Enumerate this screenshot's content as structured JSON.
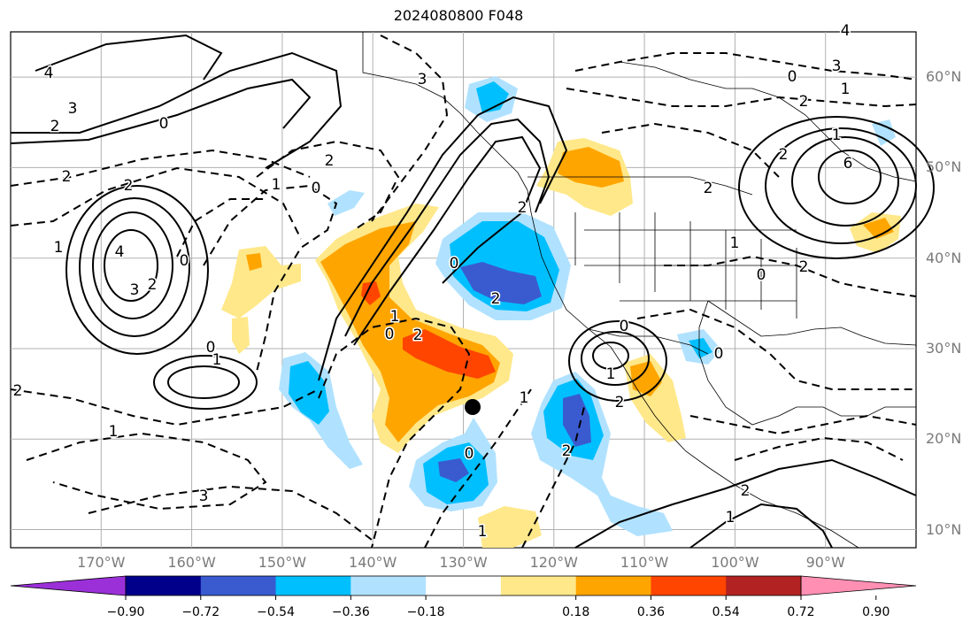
{
  "title": "2024080800 F048",
  "map": {
    "lat_labels": [
      "60°N",
      "50°N",
      "40°N",
      "30°N",
      "20°N",
      "10°N"
    ],
    "lat_values": [
      60,
      50,
      40,
      30,
      20,
      10
    ],
    "lon_labels": [
      "170°W",
      "160°W",
      "150°W",
      "140°W",
      "130°W",
      "120°W",
      "110°W",
      "100°W",
      "90°W"
    ],
    "lon_values": [
      -170,
      -160,
      -150,
      -140,
      -130,
      -120,
      -110,
      -100,
      -90
    ],
    "extent": {
      "lon": [
        -180,
        -80
      ],
      "lat": [
        8,
        65
      ]
    },
    "marker": {
      "lon": -129,
      "lat": 23.5,
      "color": "#000000"
    },
    "contour_labels": [
      "4",
      "3",
      "2",
      "0",
      "2",
      "1",
      "4",
      "3",
      "2",
      "0",
      "1",
      "1",
      "0",
      "2",
      "3",
      "2",
      "0",
      "1",
      "2",
      "0",
      "2",
      "1",
      "0",
      "2",
      "1",
      "0",
      "1",
      "3",
      "2",
      "0",
      "1",
      "2",
      "2",
      "4",
      "3",
      "0",
      "1",
      "2",
      "6",
      "1",
      "2",
      "2",
      "0",
      "2",
      "1",
      "0",
      "2",
      "1"
    ]
  },
  "colorbar": {
    "colors": [
      "#9b30d9",
      "#00008b",
      "#3a5bd0",
      "#00bfff",
      "#b0e2ff",
      "#ffffff",
      "#ffe88a",
      "#ffa500",
      "#ff4500",
      "#b22222",
      "#ff8fb3"
    ],
    "tick_labels": [
      "−0.90",
      "−0.72",
      "−0.54",
      "−0.36",
      "−0.18",
      "0.18",
      "0.36",
      "0.54",
      "0.72",
      "0.90"
    ],
    "tick_values": [
      -0.9,
      -0.72,
      -0.54,
      -0.36,
      -0.18,
      0.18,
      0.36,
      0.54,
      0.72,
      0.9
    ]
  },
  "colors": {
    "grid": "#b0b0b0",
    "coast": "#000000",
    "contour": "#000000",
    "axis_label": "#7a7a7a"
  }
}
